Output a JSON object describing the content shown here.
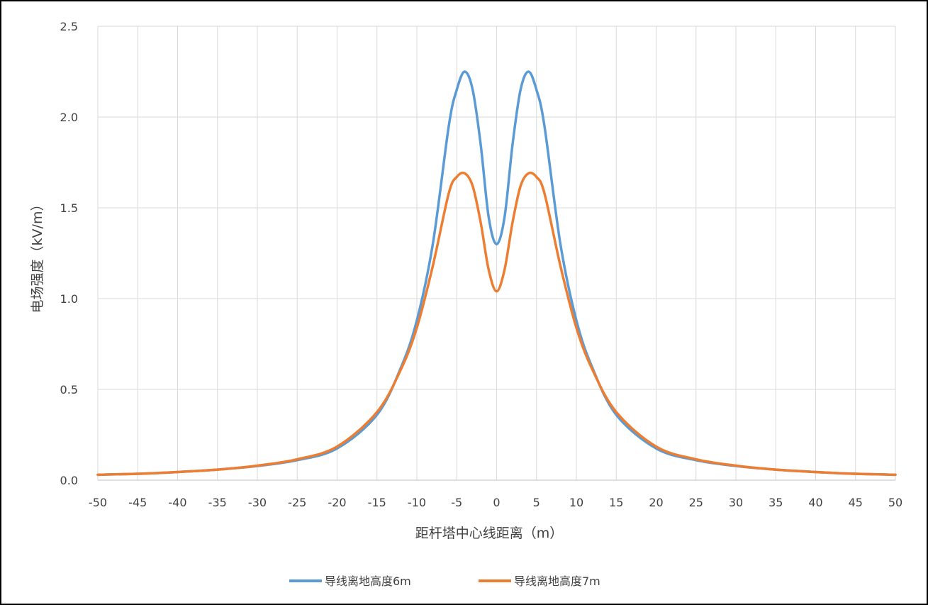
{
  "chart_data": {
    "type": "line",
    "title": "",
    "xlabel": "距杆塔中心线距离（m）",
    "ylabel": "电场强度（kV/m）",
    "xlim": [
      -50,
      50
    ],
    "ylim": [
      0,
      2.5
    ],
    "xticks": [
      -50,
      -45,
      -40,
      -35,
      -30,
      -25,
      -20,
      -15,
      -10,
      -5,
      0,
      5,
      10,
      15,
      20,
      25,
      30,
      35,
      40,
      45,
      50
    ],
    "yticks": [
      "0.0",
      "0.5",
      "1.0",
      "1.5",
      "2.0",
      "2.5"
    ],
    "grid": true,
    "legend_position": "bottom",
    "x": [
      -50,
      -45,
      -40,
      -35,
      -30,
      -25,
      -20,
      -15,
      -12,
      -10,
      -8,
      -6,
      -5,
      -4,
      -3,
      -2,
      -1,
      0,
      1,
      2,
      3,
      4,
      5,
      6,
      8,
      10,
      12,
      15,
      20,
      25,
      30,
      35,
      40,
      45,
      50
    ],
    "series": [
      {
        "name": "导线离地高度6m",
        "color": "#5b9bd5",
        "values": [
          0.03,
          0.035,
          0.045,
          0.058,
          0.078,
          0.11,
          0.175,
          0.36,
          0.62,
          0.88,
          1.3,
          1.95,
          2.15,
          2.25,
          2.15,
          1.85,
          1.45,
          1.3,
          1.45,
          1.85,
          2.15,
          2.25,
          2.15,
          1.95,
          1.3,
          0.88,
          0.62,
          0.36,
          0.175,
          0.11,
          0.078,
          0.058,
          0.045,
          0.035,
          0.03
        ]
      },
      {
        "name": "导线离地高度7m",
        "color": "#ed7d31",
        "values": [
          0.03,
          0.035,
          0.045,
          0.058,
          0.08,
          0.115,
          0.185,
          0.375,
          0.61,
          0.84,
          1.18,
          1.58,
          1.67,
          1.69,
          1.62,
          1.42,
          1.16,
          1.04,
          1.16,
          1.42,
          1.62,
          1.69,
          1.67,
          1.58,
          1.18,
          0.84,
          0.61,
          0.375,
          0.185,
          0.115,
          0.08,
          0.058,
          0.045,
          0.035,
          0.03
        ]
      }
    ]
  }
}
